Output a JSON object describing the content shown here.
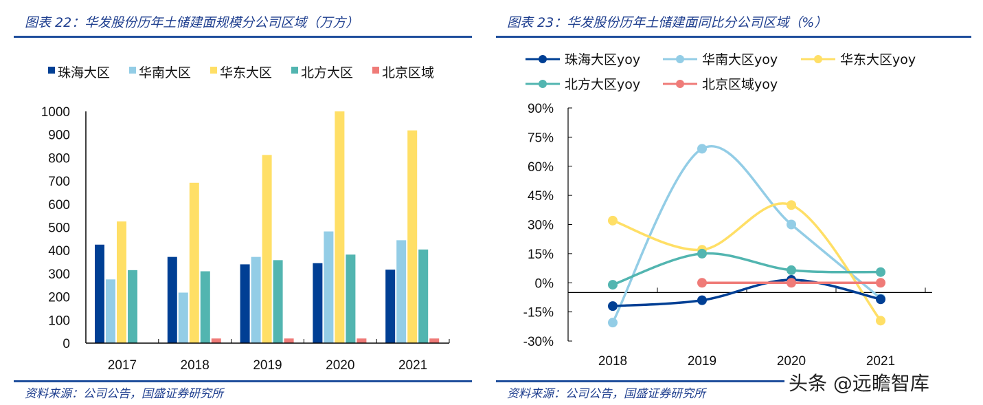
{
  "left": {
    "title": "图表 22：华发股份历年土储建面规模分公司区域（万方）",
    "source": "资料来源：公司公告，国盛证券研究所"
  },
  "right": {
    "title": "图表 23：华发股份历年土储建面同比分公司区域（%）",
    "source": "资料来源：公司公告，国盛证券研究所"
  },
  "watermark": "头条 @远瞻智库",
  "chart_data": [
    {
      "type": "bar",
      "title": "图表 22：华发股份历年土储建面规模分公司区域（万方）",
      "categories": [
        "2017",
        "2018",
        "2019",
        "2020",
        "2021"
      ],
      "ylim": [
        0,
        1000
      ],
      "yticks": [
        "0",
        "100",
        "200",
        "300",
        "400",
        "500",
        "600",
        "700",
        "800",
        "900",
        "1000"
      ],
      "legend_position": "top",
      "grid": false,
      "series": [
        {
          "name": "珠海大区",
          "color": "#003f94",
          "values": [
            425,
            372,
            340,
            345,
            317
          ]
        },
        {
          "name": "华南大区",
          "color": "#93cde6",
          "values": [
            275,
            218,
            372,
            482,
            444
          ]
        },
        {
          "name": "华东大区",
          "color": "#ffdf66",
          "values": [
            525,
            692,
            812,
            1000,
            918
          ]
        },
        {
          "name": "北方大区",
          "color": "#52b5b0",
          "values": [
            315,
            310,
            358,
            382,
            404
          ]
        },
        {
          "name": "北京区域",
          "color": "#ef7b78",
          "values": [
            0,
            20,
            20,
            20,
            20
          ]
        }
      ]
    },
    {
      "type": "line",
      "title": "图表 23：华发股份历年土储建面同比分公司区域（%）",
      "categories": [
        "2018",
        "2019",
        "2020",
        "2021"
      ],
      "ylim": [
        -30,
        90
      ],
      "yticks": [
        "-30%",
        "-15%",
        "0%",
        "15%",
        "30%",
        "45%",
        "60%",
        "75%",
        "90%"
      ],
      "x_axis_crosses_at": -5,
      "legend_position": "top",
      "grid": false,
      "smooth": true,
      "series": [
        {
          "name": "珠海大区yoy",
          "color": "#003f94",
          "values": [
            -12,
            -9,
            1.5,
            -8.5
          ]
        },
        {
          "name": "华南大区yoy",
          "color": "#93cde6",
          "values": [
            -20.5,
            69,
            30,
            -8
          ]
        },
        {
          "name": "华东大区yoy",
          "color": "#ffdf66",
          "values": [
            32,
            17,
            40,
            -19.5
          ]
        },
        {
          "name": "北方大区yoy",
          "color": "#52b5b0",
          "values": [
            -1,
            15,
            6.5,
            5.5
          ]
        },
        {
          "name": "北京区域yoy",
          "color": "#ef7b78",
          "values": [
            null,
            0,
            0,
            0
          ]
        }
      ]
    }
  ]
}
